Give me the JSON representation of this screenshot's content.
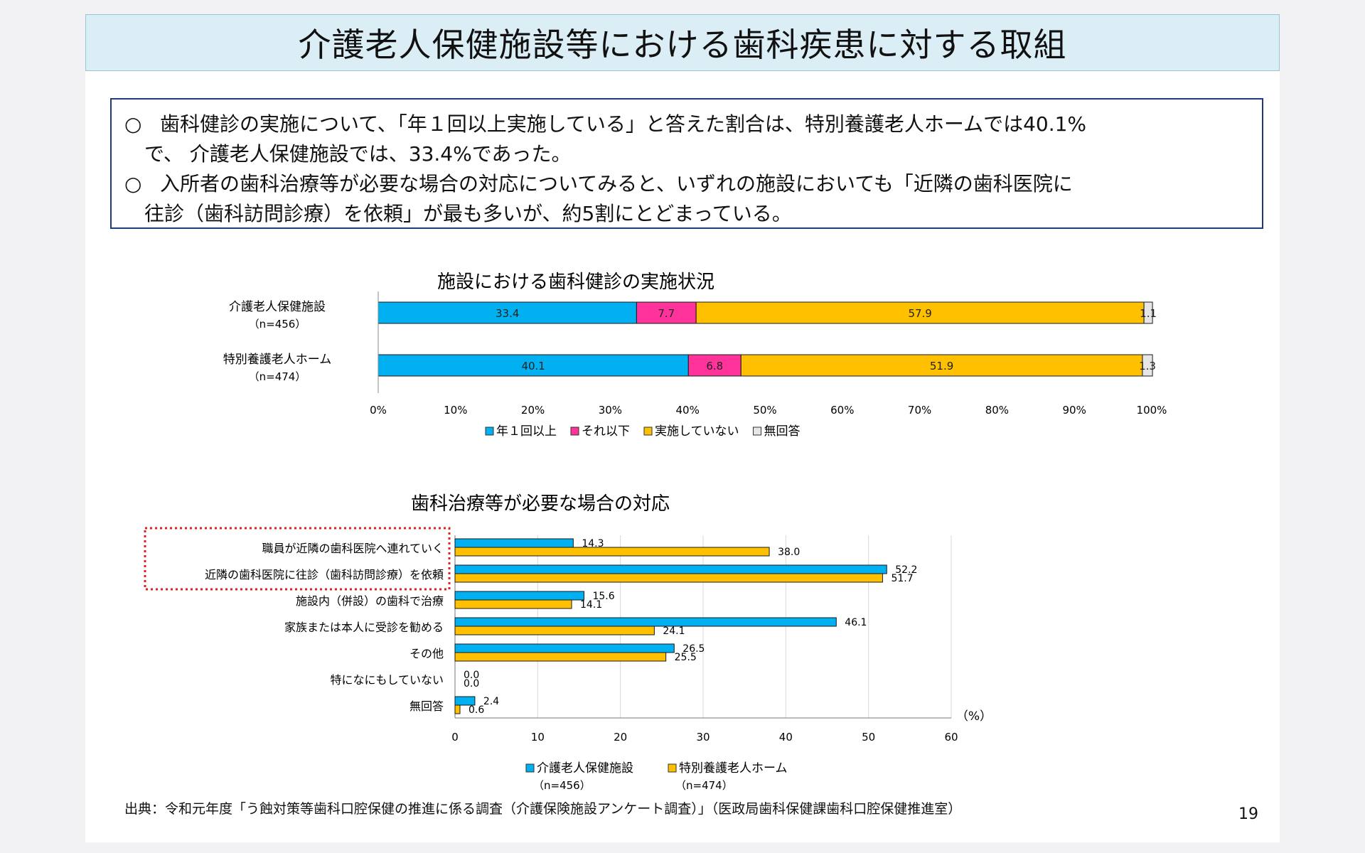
{
  "title": "介護老人保健施設等における歯科疾患に対する取組",
  "summary": [
    {
      "bullet": "○",
      "text": "歯科健診の実施について、「年１回以上実施している」と答えた割合は、特別養護老人ホームでは40.1%",
      "cont": "で、 介護老人保健施設では、33.4%であった。"
    },
    {
      "bullet": "○",
      "text": "入所者の歯科治療等が必要な場合の対応についてみると、いずれの施設においても「近隣の歯科医院に",
      "cont": "往診（歯科訪問診療）を依頼」が最も多いが、約5割にとどまっている。"
    }
  ],
  "chart_data": [
    {
      "type": "bar",
      "orientation": "horizontal-stacked",
      "title": "施設における歯科健診の実施状況",
      "categories": [
        "介護老人保健施設",
        "特別養護老人ホーム"
      ],
      "category_sub": [
        "（n=456）",
        "（n=474）"
      ],
      "series": [
        {
          "name": "年１回以上",
          "color": "#00b0f0",
          "values": [
            33.4,
            40.1
          ],
          "labels": [
            "33.4",
            "40.1"
          ]
        },
        {
          "name": "それ以下",
          "color": "#ff3399",
          "values": [
            7.7,
            6.8
          ],
          "labels": [
            "7.7",
            "6.8"
          ]
        },
        {
          "name": "実施していない",
          "color": "#ffc000",
          "values": [
            57.9,
            51.9
          ],
          "labels": [
            "57.9",
            "51.9"
          ]
        },
        {
          "name": "無回答",
          "color": "#e6e6e6",
          "values": [
            1.1,
            1.3
          ],
          "labels": [
            "1.1",
            "1.3"
          ]
        }
      ],
      "xlim": [
        0,
        100
      ],
      "ticks": [
        "0%",
        "10%",
        "20%",
        "30%",
        "40%",
        "50%",
        "60%",
        "70%",
        "80%",
        "90%",
        "100%"
      ],
      "legend": "bottom"
    },
    {
      "type": "bar",
      "orientation": "horizontal-grouped",
      "title": "歯科治療等が必要な場合の対応",
      "categories": [
        "職員が近隣の歯科医院へ連れていく",
        "近隣の歯科医院に往診（歯科訪問診療）を依頼",
        "施設内（併設）の歯科で治療",
        "家族または本人に受診を勧める",
        "その他",
        "特になにもしていない",
        "無回答"
      ],
      "highlighted_categories": [
        "職員が近隣の歯科医院へ連れていく",
        "近隣の歯科医院に往診（歯科訪問診療）を依頼"
      ],
      "series": [
        {
          "name": "介護老人保健施設",
          "sub": "（n=456）",
          "color": "#00b0f0",
          "values": [
            14.3,
            52.2,
            15.6,
            46.1,
            26.5,
            0.0,
            2.4
          ],
          "labels": [
            "14.3",
            "52.2",
            "15.6",
            "46.1",
            "26.5",
            "0.0",
            "2.4"
          ]
        },
        {
          "name": "特別養護老人ホーム",
          "sub": "（n=474）",
          "color": "#ffc000",
          "values": [
            38.0,
            51.7,
            14.1,
            24.1,
            25.5,
            0.0,
            0.6
          ],
          "labels": [
            "38.0",
            "51.7",
            "14.1",
            "24.1",
            "25.5",
            "0.0",
            "0.6"
          ]
        }
      ],
      "xlim": [
        0,
        60
      ],
      "ticks": [
        "0",
        "10",
        "20",
        "30",
        "40",
        "50",
        "60"
      ],
      "unit_label": "（%）",
      "legend": "bottom"
    }
  ],
  "source": "出典：令和元年度「う蝕対策等歯科口腔保健の推進に係る調査（介護保険施設アンケート調査）」（医政局歯科保健課歯科口腔保健推進室）",
  "page_number": "19"
}
